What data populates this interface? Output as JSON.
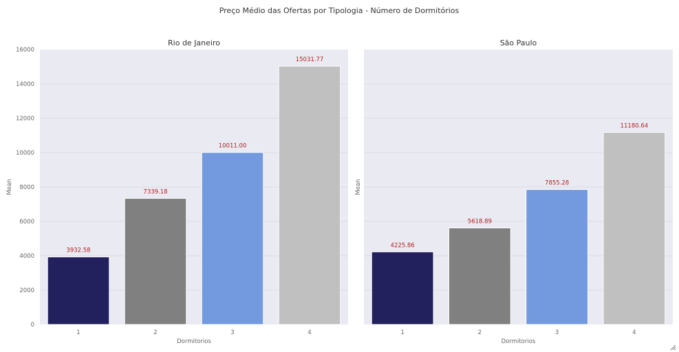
{
  "figure": {
    "title": "Preço Médio das Ofertas por Tipologia - Número de Dormitórios"
  },
  "colors": {
    "panel_bg": "#eaeaf2",
    "grid": "#d3d3dc",
    "label": "#b22222",
    "tick_text": "#666666",
    "title_text": "#333333",
    "bars": [
      "#22215e",
      "#808080",
      "#739ade",
      "#c0c0c0"
    ]
  },
  "chart_data": [
    {
      "type": "bar",
      "title": "Rio de Janeiro",
      "xlabel": "Dormitorios",
      "ylabel": "Mean",
      "categories": [
        "1",
        "2",
        "3",
        "4"
      ],
      "values": [
        3932.58,
        7339.18,
        10011.0,
        15031.77
      ],
      "data_labels": [
        "3932.58",
        "7339.18",
        "10011.00",
        "15031.77"
      ],
      "ylim": [
        0,
        16000
      ],
      "yticks": [
        0,
        2000,
        4000,
        6000,
        8000,
        10000,
        12000,
        14000,
        16000
      ],
      "grid": true
    },
    {
      "type": "bar",
      "title": "São Paulo",
      "xlabel": "Dormitorios",
      "ylabel": "Mean",
      "categories": [
        "1",
        "2",
        "3",
        "4"
      ],
      "values": [
        4225.86,
        5618.89,
        7855.28,
        11180.64
      ],
      "data_labels": [
        "4225.86",
        "5618.89",
        "7855.28",
        "11180.64"
      ],
      "ylim": [
        0,
        16000
      ],
      "yticks": [],
      "grid": true
    }
  ]
}
